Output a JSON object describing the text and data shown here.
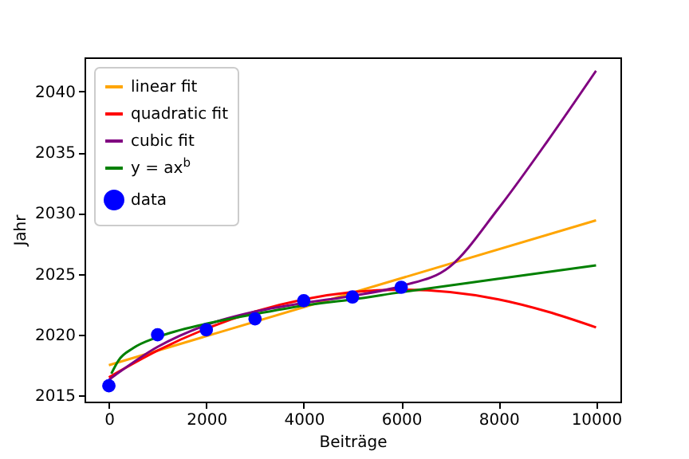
{
  "chart_data": {
    "type": "line",
    "xlabel": "Beiträge",
    "ylabel": "Jahr",
    "xlim": [
      -500,
      10500
    ],
    "ylim": [
      2014.5,
      2042.8
    ],
    "xticks": [
      0,
      2000,
      4000,
      6000,
      8000,
      10000
    ],
    "yticks": [
      2015,
      2020,
      2025,
      2030,
      2035,
      2040
    ],
    "grid": false,
    "legend": "top left",
    "line_style": "solid",
    "series": [
      {
        "name": "linear fit",
        "color": "#ffa500",
        "x": [
          0,
          10000
        ],
        "values": [
          2017.5,
          2029.4
        ]
      },
      {
        "name": "quadratic fit",
        "color": "#ff0000",
        "x": [
          0,
          1000,
          2000,
          3000,
          4000,
          5000,
          6000,
          7000,
          8000,
          9000,
          10000
        ],
        "values": [
          2016.5,
          2018.7,
          2020.5,
          2021.9,
          2022.9,
          2023.5,
          2023.7,
          2023.5,
          2022.9,
          2021.9,
          2020.6
        ]
      },
      {
        "name": "cubic fit",
        "color": "#800080",
        "x": [
          0,
          1000,
          2000,
          3000,
          4000,
          5000,
          6000,
          7000,
          8000,
          9000,
          10000
        ],
        "values": [
          2016.3,
          2019.0,
          2020.8,
          2021.9,
          2022.6,
          2023.2,
          2024.0,
          2025.6,
          2030.4,
          2035.9,
          2041.7
        ]
      },
      {
        "name": "y = ax$^{b}$",
        "color": "#008000",
        "x": [
          50,
          200,
          500,
          1000,
          2000,
          3000,
          4000,
          5000,
          6000,
          8000,
          10000
        ],
        "values": [
          2016.8,
          2017.9,
          2018.9,
          2019.8,
          2020.9,
          2021.7,
          2022.4,
          2022.9,
          2023.5,
          2024.6,
          2025.7
        ]
      },
      {
        "name": "data",
        "type": "scatter",
        "marker": "circle",
        "color": "#0000ff",
        "x": [
          0,
          1000,
          2000,
          3000,
          4000,
          5000,
          6000
        ],
        "values": [
          2015.8,
          2020.0,
          2020.4,
          2021.3,
          2022.8,
          2023.1,
          2023.9
        ]
      }
    ]
  }
}
